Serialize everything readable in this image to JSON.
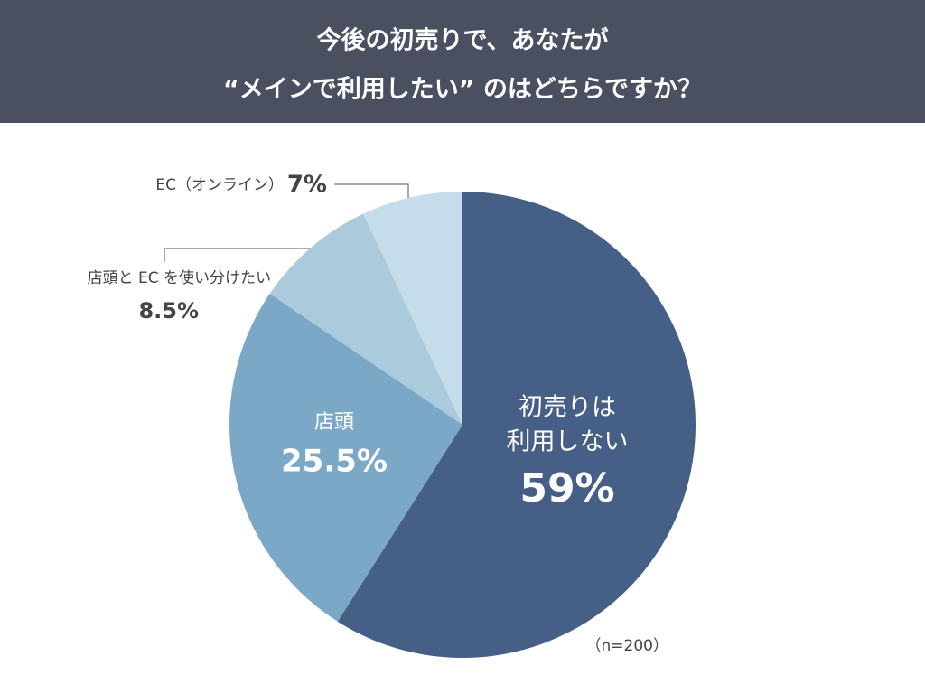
{
  "chart_data": {
    "type": "pie",
    "title": [
      "今後の初売りで、あなたが",
      "“メインで利用したい” のはどちらですか？"
    ],
    "categories": [
      [
        "初売りは",
        "利用しない"
      ],
      [
        "店頭"
      ],
      [
        "店頭と EC を使い分けたい"
      ],
      [
        "EC（オンライン）"
      ]
    ],
    "values": [
      59,
      25.5,
      8.5,
      7
    ],
    "value_labels": [
      "59%",
      "25.5%",
      "8.5%",
      "7%"
    ],
    "colors": [
      "#465f87",
      "#7ca8c8",
      "#abcadb",
      "#c5dcea"
    ],
    "note": "（n=200）"
  }
}
